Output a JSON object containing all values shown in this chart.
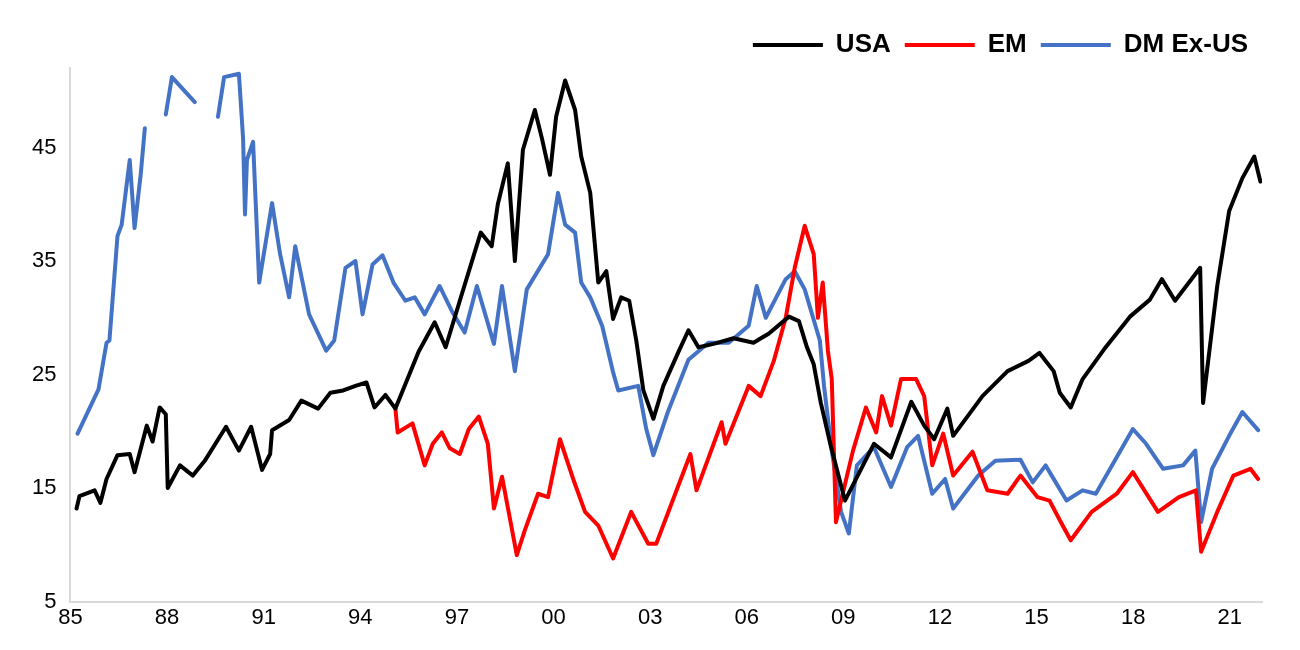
{
  "chart_data": {
    "type": "line",
    "legend": "top right",
    "grid": false,
    "marker": "none",
    "line_style": "solid",
    "xlim": [
      1985,
      2022
    ],
    "ylim": [
      5,
      52
    ],
    "xticks": [
      {
        "value": 1985,
        "label": "85"
      },
      {
        "value": 1988,
        "label": "88"
      },
      {
        "value": 1991,
        "label": "91"
      },
      {
        "value": 1994,
        "label": "94"
      },
      {
        "value": 1997,
        "label": "97"
      },
      {
        "value": 2000,
        "label": "00"
      },
      {
        "value": 2003,
        "label": "03"
      },
      {
        "value": 2006,
        "label": "06"
      },
      {
        "value": 2009,
        "label": "09"
      },
      {
        "value": 2012,
        "label": "12"
      },
      {
        "value": 2015,
        "label": "15"
      },
      {
        "value": 2018,
        "label": "18"
      },
      {
        "value": 2021,
        "label": "21"
      }
    ],
    "yticks": [
      5,
      15,
      25,
      35,
      45
    ],
    "series": [
      {
        "name": "USA",
        "color": "#000000",
        "x": [
          1985.19,
          1985.28,
          1985.75,
          1985.93,
          1986.12,
          1986.46,
          1986.84,
          1986.99,
          1987.37,
          1987.55,
          1987.77,
          1987.96,
          1988.02,
          1988.4,
          1988.8,
          1989.17,
          1989.83,
          1990.23,
          1990.61,
          1990.95,
          1991.2,
          1991.26,
          1991.79,
          1992.17,
          1992.69,
          1993.07,
          1993.47,
          1993.85,
          1994.19,
          1994.44,
          1994.78,
          1995.09,
          1995.81,
          1996.31,
          1996.65,
          1997.09,
          1997.74,
          1998.08,
          1998.27,
          1998.58,
          1998.8,
          1999.05,
          1999.42,
          1999.64,
          1999.89,
          2000.08,
          2000.36,
          2000.67,
          2000.86,
          2001.14,
          2001.39,
          2001.64,
          2001.85,
          2002.1,
          2002.35,
          2002.57,
          2002.79,
          2003.1,
          2003.41,
          2003.88,
          2004.19,
          2004.5,
          2004.97,
          2005.59,
          2006.21,
          2006.68,
          2007.31,
          2007.62,
          2007.87,
          2008.08,
          2008.3,
          2008.61,
          2009.05,
          2009.95,
          2010.48,
          2011.11,
          2011.51,
          2011.82,
          2012.23,
          2012.41,
          2013.32,
          2014.1,
          2014.75,
          2015.09,
          2015.53,
          2015.72,
          2016.06,
          2016.43,
          2017.09,
          2017.9,
          2018.52,
          2018.89,
          2019.3,
          2020.08,
          2020.17,
          2020.61,
          2020.98,
          2021.39,
          2021.76,
          2021.95
        ],
        "values": [
          13.2,
          14.3,
          14.8,
          13.7,
          15.8,
          17.9,
          18.0,
          16.4,
          20.5,
          19.1,
          22.1,
          21.5,
          15.0,
          17.0,
          16.1,
          17.4,
          20.4,
          18.3,
          20.4,
          16.6,
          18.0,
          20.1,
          21.0,
          22.7,
          22.0,
          23.4,
          23.6,
          24.0,
          24.3,
          22.1,
          23.2,
          22.0,
          27.0,
          29.6,
          27.4,
          31.5,
          37.5,
          36.3,
          40.0,
          43.6,
          35.0,
          44.8,
          48.3,
          45.8,
          42.6,
          47.7,
          50.9,
          48.3,
          44.2,
          41.0,
          33.1,
          34.1,
          29.9,
          31.8,
          31.5,
          28.0,
          23.6,
          21.1,
          24.0,
          27.0,
          28.9,
          27.4,
          27.7,
          28.2,
          27.8,
          28.6,
          30.1,
          29.7,
          27.4,
          25.9,
          22.5,
          18.7,
          13.9,
          18.9,
          17.7,
          22.6,
          20.5,
          19.3,
          22.0,
          19.6,
          23.1,
          25.3,
          26.2,
          26.9,
          25.3,
          23.4,
          22.1,
          24.6,
          27.2,
          30.1,
          31.6,
          33.4,
          31.5,
          34.4,
          22.5,
          32.8,
          39.4,
          42.3,
          44.2,
          42.0
        ]
      },
      {
        "name": "EM",
        "color": "#ff0000",
        "x": [
          1995.09,
          1995.16,
          1995.62,
          1996.0,
          1996.25,
          1996.53,
          1996.78,
          1997.09,
          1997.37,
          1997.68,
          1997.96,
          1998.15,
          1998.4,
          1998.86,
          1999.11,
          1999.52,
          1999.83,
          2000.2,
          2000.61,
          2000.98,
          2001.39,
          2001.85,
          2002.41,
          2002.94,
          2003.19,
          2004.25,
          2004.44,
          2005.22,
          2005.34,
          2006.06,
          2006.43,
          2006.84,
          2007.21,
          2007.49,
          2007.8,
          2008.08,
          2008.21,
          2008.36,
          2008.52,
          2008.64,
          2008.77,
          2009.3,
          2009.7,
          2010.02,
          2010.2,
          2010.48,
          2010.79,
          2011.26,
          2011.51,
          2011.76,
          2012.1,
          2012.41,
          2013.01,
          2013.47,
          2014.1,
          2014.5,
          2015.03,
          2015.4,
          2015.81,
          2016.06,
          2016.71,
          2017.49,
          2017.99,
          2018.77,
          2019.42,
          2019.95,
          2020.11,
          2020.61,
          2021.11,
          2021.64,
          2021.88
        ],
        "values": [
          22.0,
          19.9,
          20.7,
          17.0,
          18.9,
          19.9,
          18.5,
          18.0,
          20.2,
          21.3,
          18.9,
          13.2,
          16.0,
          9.1,
          11.3,
          14.5,
          14.2,
          19.3,
          15.8,
          12.9,
          11.7,
          8.8,
          12.9,
          10.1,
          10.1,
          18.0,
          14.8,
          20.8,
          18.9,
          24.0,
          23.1,
          26.2,
          30.0,
          34.4,
          38.1,
          35.6,
          30.0,
          33.1,
          27.1,
          24.6,
          12.0,
          18.3,
          22.1,
          19.9,
          23.1,
          20.5,
          24.6,
          24.6,
          23.1,
          17.0,
          19.8,
          16.1,
          18.2,
          14.8,
          14.5,
          16.1,
          14.2,
          13.9,
          11.7,
          10.4,
          12.9,
          14.5,
          16.4,
          12.9,
          14.2,
          14.8,
          9.4,
          12.9,
          16.1,
          16.7,
          15.8
        ]
      },
      {
        "name": "DM Ex-US",
        "color": "#4472c4",
        "x": [
          1985.22,
          1985.87,
          1986.12,
          1986.21,
          1986.46,
          1986.59,
          1986.84,
          1986.99,
          1987.18,
          1987.31,
          1987.43,
          1987.96,
          1988.15,
          1988.86,
          1989.05,
          1989.58,
          1989.77,
          1990.23,
          1990.36,
          1990.42,
          1990.48,
          1990.67,
          1990.86,
          1991.26,
          1991.51,
          1991.79,
          1991.98,
          1992.41,
          1992.94,
          1993.19,
          1993.54,
          1993.85,
          1994.07,
          1994.38,
          1994.69,
          1995.03,
          1995.4,
          1995.69,
          1996.0,
          1996.46,
          1996.84,
          1997.24,
          1997.62,
          1998.15,
          1998.4,
          1998.8,
          1999.17,
          1999.83,
          2000.14,
          2000.36,
          2000.67,
          2000.86,
          2001.14,
          2001.51,
          2001.85,
          2002.01,
          2002.63,
          2002.88,
          2003.1,
          2003.55,
          2004.19,
          2004.81,
          2005.44,
          2006.06,
          2006.31,
          2006.59,
          2007.21,
          2007.49,
          2007.8,
          2008.27,
          2008.4,
          2008.64,
          2008.93,
          2009.17,
          2009.42,
          2009.95,
          2010.48,
          2010.98,
          2011.32,
          2011.76,
          2012.16,
          2012.41,
          2013.19,
          2013.72,
          2014.5,
          2014.88,
          2015.28,
          2015.93,
          2016.43,
          2016.84,
          2017.99,
          2018.4,
          2018.93,
          2019.55,
          2019.93,
          2020.11,
          2020.45,
          2020.98,
          2021.39,
          2021.88
        ],
        "values": [
          19.8,
          23.7,
          27.8,
          28.0,
          37.2,
          38.2,
          43.9,
          37.9,
          42.6,
          46.7,
          null,
          47.9,
          51.2,
          49.0,
          null,
          47.7,
          51.2,
          51.5,
          45.8,
          39.1,
          43.9,
          45.5,
          33.1,
          40.1,
          35.6,
          31.8,
          36.3,
          30.3,
          27.1,
          28.0,
          34.4,
          35.0,
          30.3,
          34.7,
          35.5,
          33.1,
          31.5,
          31.8,
          30.3,
          32.8,
          30.6,
          28.7,
          32.8,
          27.7,
          32.8,
          25.3,
          32.5,
          35.6,
          41.0,
          38.2,
          37.5,
          33.1,
          31.8,
          29.3,
          25.2,
          23.6,
          24.0,
          20.2,
          17.9,
          21.7,
          26.3,
          27.8,
          27.8,
          29.3,
          32.8,
          30.0,
          33.4,
          34.1,
          32.5,
          28.0,
          24.0,
          18.3,
          12.9,
          11.0,
          17.0,
          18.6,
          15.1,
          18.6,
          19.6,
          14.5,
          15.8,
          13.2,
          16.1,
          17.4,
          17.5,
          15.5,
          17.0,
          13.9,
          14.8,
          14.5,
          20.2,
          18.9,
          16.7,
          17.0,
          18.3,
          12.0,
          16.7,
          19.6,
          21.7,
          20.1
        ]
      }
    ]
  }
}
